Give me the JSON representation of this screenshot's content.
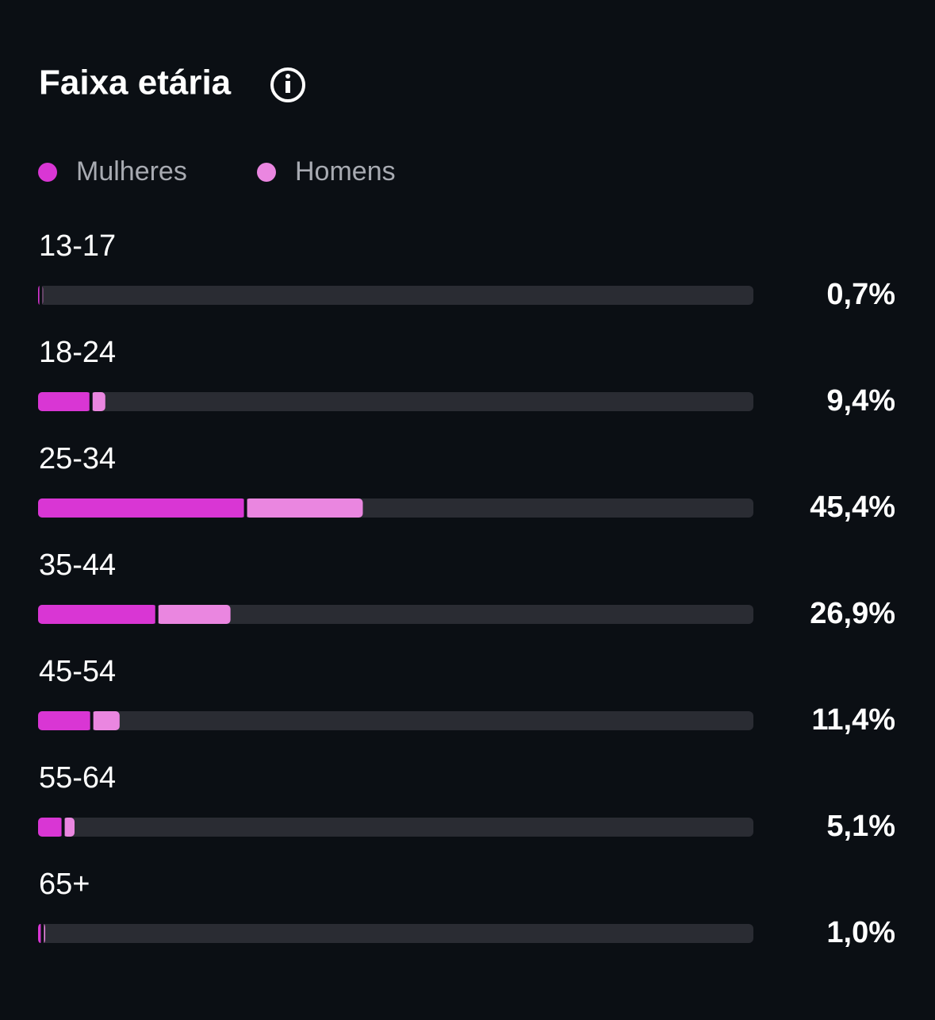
{
  "chart_data": {
    "type": "stacked-bar",
    "title": "Faixa etária",
    "categories": [
      "13-17",
      "18-24",
      "25-34",
      "35-44",
      "45-54",
      "55-64",
      "65+"
    ],
    "series": [
      {
        "name": "Mulheres",
        "color": "#d936d4",
        "values": [
          0.4,
          7.4,
          29.0,
          16.6,
          7.5,
          3.5,
          0.6
        ]
      },
      {
        "name": "Homens",
        "color": "#ea86e0",
        "values": [
          0.3,
          2.0,
          16.4,
          10.3,
          3.9,
          1.6,
          0.4
        ]
      }
    ],
    "totals": [
      0.7,
      9.4,
      45.4,
      26.9,
      11.4,
      5.1,
      1.0
    ],
    "total_labels": [
      "0,7%",
      "9,4%",
      "45,4%",
      "26,9%",
      "11,4%",
      "5,1%",
      "1,0%"
    ],
    "xlim": [
      0,
      100
    ]
  }
}
